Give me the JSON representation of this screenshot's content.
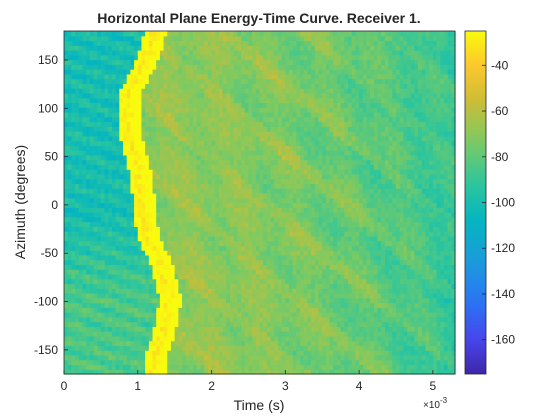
{
  "chart_data": {
    "type": "heatmap",
    "title": "Horizontal Plane Energy-Time Curve. Receiver 1.",
    "xlabel": "Time (s)",
    "ylabel": "Azimuth (degrees)",
    "x_exponent_label": "×10",
    "x_exponent_power": "-3",
    "x_range_ms": [
      0,
      5.3
    ],
    "y_range_deg": [
      -175,
      180
    ],
    "x_ticks": [
      0,
      1,
      2,
      3,
      4,
      5
    ],
    "x_tick_labels": [
      "0",
      "1",
      "2",
      "3",
      "4",
      "5"
    ],
    "y_ticks": [
      150,
      100,
      50,
      0,
      -50,
      -100,
      -150
    ],
    "y_tick_labels": [
      "150",
      "100",
      "50",
      "0",
      "-50",
      "-100",
      "-150"
    ],
    "colorbar": {
      "colormap": "parula",
      "range": [
        -175,
        -25
      ],
      "ticks": [
        -40,
        -60,
        -80,
        -100,
        -120,
        -140,
        -160
      ],
      "tick_labels": [
        "-40",
        "-60",
        "-80",
        "-100",
        "-120",
        "-140",
        "-160"
      ]
    },
    "features": {
      "direct_sound_arrival_ms": {
        "azimuth_100": 0.85,
        "azimuth_0": 1.05,
        "azimuth_-100": 1.4,
        "azimuth_-175": 1.2,
        "azimuth_180": 1.2
      },
      "peak_level": -30,
      "background_level": -100,
      "diffuse_level": -70,
      "pre_arrival_level_front": -100,
      "pre_arrival_level_rear": -85
    },
    "grid": false,
    "legend": "none"
  }
}
